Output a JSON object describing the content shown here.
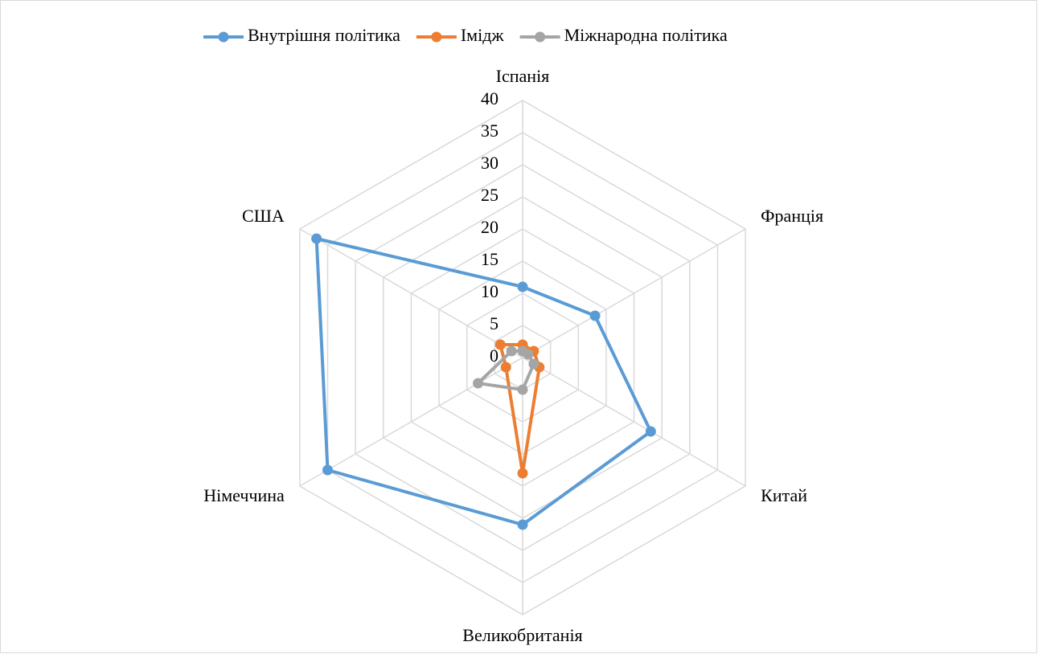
{
  "chart_data": {
    "type": "radar",
    "categories": [
      "Іспанія",
      "Франція",
      "Китай",
      "Великобританія",
      "Німеччина",
      "США"
    ],
    "series": [
      {
        "name": "Внутрішня політика",
        "color": "#5b9bd5",
        "values": [
          11,
          13,
          23,
          26,
          35,
          37
        ]
      },
      {
        "name": "Імідж",
        "color": "#ed7d31",
        "values": [
          2,
          2,
          3,
          18,
          3,
          4
        ]
      },
      {
        "name": "Міжнародна політика",
        "color": "#a5a5a5",
        "values": [
          1,
          1,
          2,
          5,
          8,
          2
        ]
      }
    ],
    "ylim": [
      0,
      40
    ],
    "yticks": [
      0,
      5,
      10,
      15,
      20,
      25,
      30,
      35,
      40
    ],
    "grid": true,
    "legend": "top"
  }
}
